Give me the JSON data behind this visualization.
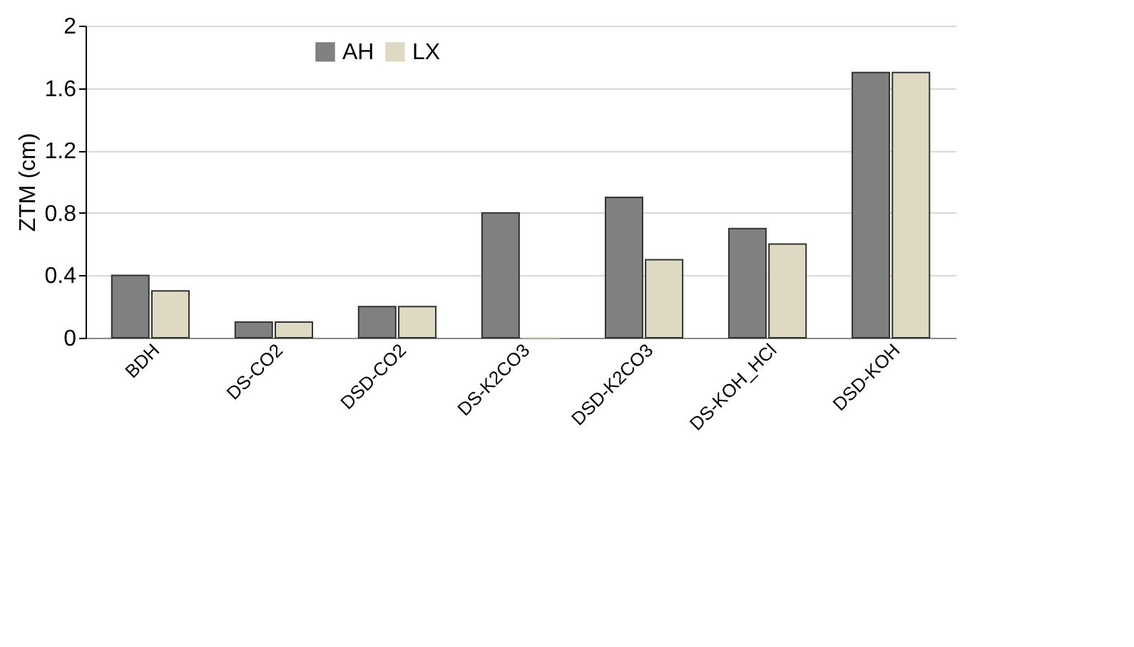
{
  "chart_data": {
    "type": "bar",
    "ylabel": "ZTM (cm)",
    "categories": [
      "BDH",
      "DS-CO2",
      "DSD-CO2",
      "DS-K2CO3",
      "DSD-K2CO3",
      "DS-KOH_HCl",
      "DSD-KOH"
    ],
    "series": [
      {
        "name": "AH",
        "color": "#808080",
        "values": [
          0.4,
          0.1,
          0.2,
          0.8,
          0.9,
          0.7,
          1.7
        ]
      },
      {
        "name": "LX",
        "color": "#ddd9c3",
        "values": [
          0.3,
          0.1,
          0.2,
          0,
          0.5,
          0.6,
          1.7
        ]
      }
    ],
    "ylim": [
      0,
      2
    ],
    "yticks": [
      0,
      0.4,
      0.8,
      1.2,
      1.6,
      2
    ],
    "grid": "y",
    "legend": "top left"
  }
}
